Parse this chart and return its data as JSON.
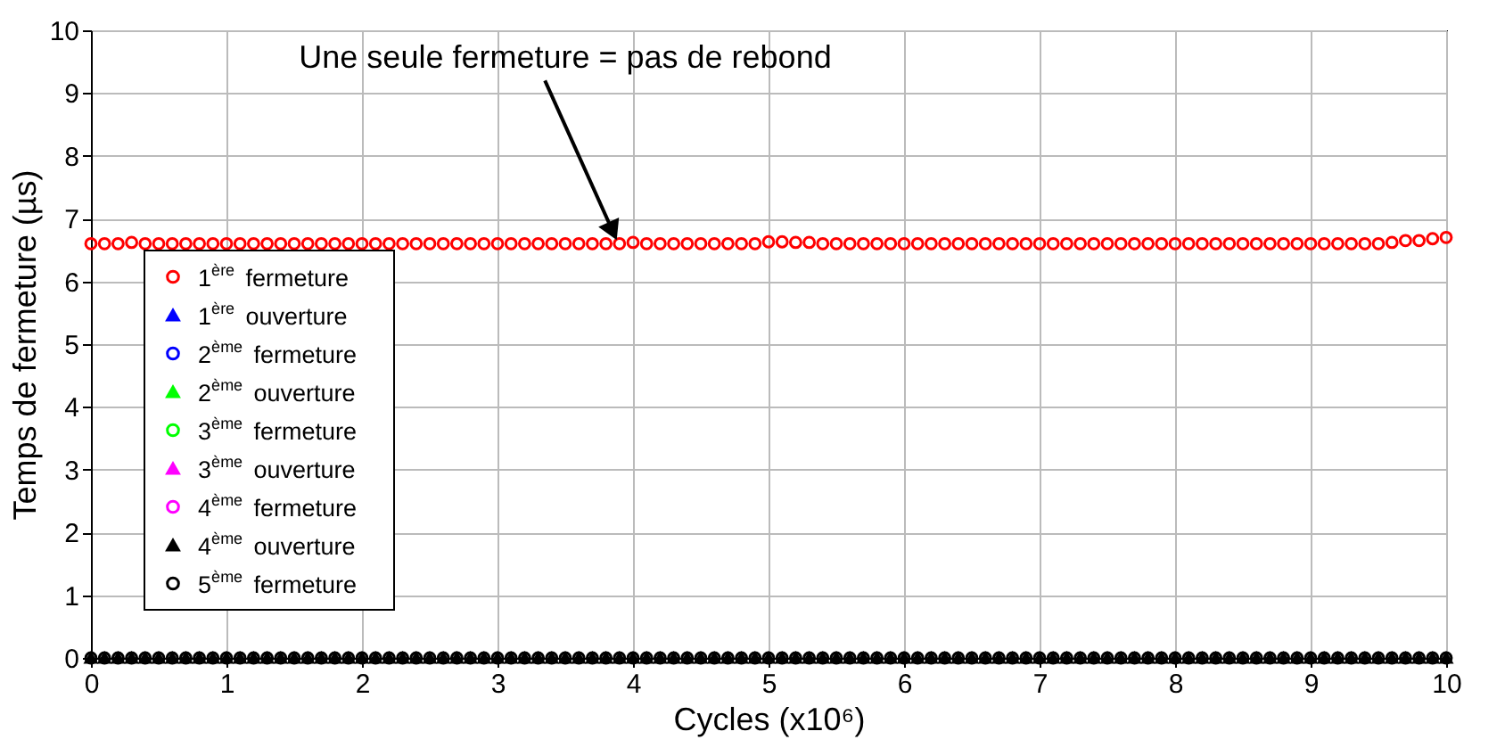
{
  "chart_data": {
    "type": "scatter",
    "xlabel": "Cycles (x10⁶)",
    "ylabel": "Temps de fermeture (µs)",
    "x": [
      0,
      0.1,
      0.2,
      0.3,
      0.4,
      0.5,
      0.6,
      0.7,
      0.8,
      0.9,
      1,
      1.1,
      1.2,
      1.3,
      1.4,
      1.5,
      1.6,
      1.7,
      1.8,
      1.9,
      2,
      2.1,
      2.2,
      2.3,
      2.4,
      2.5,
      2.6,
      2.7,
      2.8,
      2.9,
      3,
      3.1,
      3.2,
      3.3,
      3.4,
      3.5,
      3.6,
      3.7,
      3.8,
      3.9,
      4,
      4.1,
      4.2,
      4.3,
      4.4,
      4.5,
      4.6,
      4.7,
      4.8,
      4.9,
      5,
      5.1,
      5.2,
      5.3,
      5.4,
      5.5,
      5.6,
      5.7,
      5.8,
      5.9,
      6,
      6.1,
      6.2,
      6.3,
      6.4,
      6.5,
      6.6,
      6.7,
      6.8,
      6.9,
      7,
      7.1,
      7.2,
      7.3,
      7.4,
      7.5,
      7.6,
      7.7,
      7.8,
      7.9,
      8,
      8.1,
      8.2,
      8.3,
      8.4,
      8.5,
      8.6,
      8.7,
      8.8,
      8.9,
      9,
      9.1,
      9.2,
      9.3,
      9.4,
      9.5,
      9.6,
      9.7,
      9.8,
      9.9,
      10
    ],
    "series": [
      {
        "name": "1$^{ère}$ fermeture",
        "color": "#ff0000",
        "marker": "circle",
        "values": [
          6.6,
          6.6,
          6.6,
          6.62,
          6.6,
          6.6,
          6.6,
          6.6,
          6.6,
          6.6,
          6.6,
          6.6,
          6.6,
          6.6,
          6.6,
          6.6,
          6.6,
          6.6,
          6.6,
          6.6,
          6.6,
          6.6,
          6.6,
          6.6,
          6.6,
          6.6,
          6.6,
          6.6,
          6.6,
          6.6,
          6.6,
          6.6,
          6.6,
          6.6,
          6.6,
          6.6,
          6.6,
          6.6,
          6.6,
          6.6,
          6.62,
          6.6,
          6.6,
          6.6,
          6.6,
          6.6,
          6.6,
          6.6,
          6.6,
          6.6,
          6.63,
          6.63,
          6.62,
          6.62,
          6.6,
          6.6,
          6.6,
          6.6,
          6.6,
          6.6,
          6.6,
          6.6,
          6.6,
          6.6,
          6.6,
          6.6,
          6.6,
          6.6,
          6.6,
          6.6,
          6.6,
          6.6,
          6.6,
          6.6,
          6.6,
          6.6,
          6.6,
          6.6,
          6.6,
          6.6,
          6.6,
          6.6,
          6.6,
          6.6,
          6.6,
          6.6,
          6.6,
          6.6,
          6.6,
          6.6,
          6.6,
          6.6,
          6.6,
          6.6,
          6.6,
          6.6,
          6.62,
          6.65,
          6.65,
          6.68,
          6.7
        ]
      },
      {
        "name": "1$^{ère}$ ouverture",
        "color": "#0000ff",
        "marker": "triangle",
        "values": [
          null,
          null,
          null,
          null,
          null,
          null,
          null,
          null,
          null,
          null,
          null,
          null,
          null,
          null,
          null,
          null,
          null,
          null,
          null,
          null,
          null,
          null,
          null,
          null,
          null,
          null,
          null,
          null,
          null,
          null,
          null,
          null,
          null,
          null,
          null,
          null,
          null,
          null,
          null,
          null,
          null,
          null,
          null,
          null,
          null,
          null,
          null,
          null,
          null,
          null,
          null,
          null,
          null,
          null,
          null,
          null,
          null,
          null,
          null,
          null,
          null,
          null,
          null,
          null,
          null,
          null,
          null,
          null,
          null,
          null,
          null,
          null,
          null,
          null,
          null,
          null,
          null,
          null,
          null,
          null,
          null,
          null,
          null,
          null,
          null,
          null,
          null,
          null,
          null,
          null,
          null,
          null,
          null,
          null,
          null,
          null,
          null,
          null,
          null,
          null,
          null
        ]
      },
      {
        "name": "2$^{ème}$ fermeture",
        "color": "#0000ff",
        "marker": "circle",
        "values": [
          null,
          null,
          null,
          null,
          null,
          null,
          null,
          null,
          null,
          null,
          null,
          null,
          null,
          null,
          null,
          null,
          null,
          null,
          null,
          null,
          null,
          null,
          null,
          null,
          null,
          null,
          null,
          null,
          null,
          null,
          null,
          null,
          null,
          null,
          null,
          null,
          null,
          null,
          null,
          null,
          null,
          null,
          null,
          null,
          null,
          null,
          null,
          null,
          null,
          null,
          null,
          null,
          null,
          null,
          null,
          null,
          null,
          null,
          null,
          null,
          null,
          null,
          null,
          null,
          null,
          null,
          null,
          null,
          null,
          null,
          null,
          null,
          null,
          null,
          null,
          null,
          null,
          null,
          null,
          null,
          null,
          null,
          null,
          null,
          null,
          null,
          null,
          null,
          null,
          null,
          null,
          null,
          null,
          null,
          null,
          null,
          null,
          null,
          null,
          null,
          null
        ]
      },
      {
        "name": "2$^{ème}$ ouverture",
        "color": "#00ff00",
        "marker": "triangle",
        "values": [
          null,
          null,
          null,
          null,
          null,
          null,
          null,
          null,
          null,
          null,
          null,
          null,
          null,
          null,
          null,
          null,
          null,
          null,
          null,
          null,
          null,
          null,
          null,
          null,
          null,
          null,
          null,
          null,
          null,
          null,
          null,
          null,
          null,
          null,
          null,
          null,
          null,
          null,
          null,
          null,
          null,
          null,
          null,
          null,
          null,
          null,
          null,
          null,
          null,
          null,
          null,
          null,
          null,
          null,
          null,
          null,
          null,
          null,
          null,
          null,
          null,
          null,
          null,
          null,
          null,
          null,
          null,
          null,
          null,
          null,
          null,
          null,
          null,
          null,
          null,
          null,
          null,
          null,
          null,
          null,
          null,
          null,
          null,
          null,
          null,
          null,
          null,
          null,
          null,
          null,
          null,
          null,
          null,
          null,
          null,
          null,
          null,
          null,
          null,
          null,
          null
        ]
      },
      {
        "name": "3$^{ème}$ fermeture",
        "color": "#00ff00",
        "marker": "circle",
        "values": [
          null,
          null,
          null,
          null,
          null,
          null,
          null,
          null,
          null,
          null,
          null,
          null,
          null,
          null,
          null,
          null,
          null,
          null,
          null,
          null,
          null,
          null,
          null,
          null,
          null,
          null,
          null,
          null,
          null,
          null,
          null,
          null,
          null,
          null,
          null,
          null,
          null,
          null,
          null,
          null,
          null,
          null,
          null,
          null,
          null,
          null,
          null,
          null,
          null,
          null,
          null,
          null,
          null,
          null,
          null,
          null,
          null,
          null,
          null,
          null,
          null,
          null,
          null,
          null,
          null,
          null,
          null,
          null,
          null,
          null,
          null,
          null,
          null,
          null,
          null,
          null,
          null,
          null,
          null,
          null,
          null,
          null,
          null,
          null,
          null,
          null,
          null,
          null,
          null,
          null,
          null,
          null,
          null,
          null,
          null,
          null,
          null,
          null,
          null,
          null,
          null
        ]
      },
      {
        "name": "3$^{ème}$ ouverture",
        "color": "#ff00ff",
        "marker": "triangle",
        "values": [
          null,
          null,
          null,
          null,
          null,
          null,
          null,
          null,
          null,
          null,
          null,
          null,
          null,
          null,
          null,
          null,
          null,
          null,
          null,
          null,
          null,
          null,
          null,
          null,
          null,
          null,
          null,
          null,
          null,
          null,
          null,
          null,
          null,
          null,
          null,
          null,
          null,
          null,
          null,
          null,
          null,
          null,
          null,
          null,
          null,
          null,
          null,
          null,
          null,
          null,
          null,
          null,
          null,
          null,
          null,
          null,
          null,
          null,
          null,
          null,
          null,
          null,
          null,
          null,
          null,
          null,
          null,
          null,
          null,
          null,
          null,
          null,
          null,
          null,
          null,
          null,
          null,
          null,
          null,
          null,
          null,
          null,
          null,
          null,
          null,
          null,
          null,
          null,
          null,
          null,
          null,
          null,
          null,
          null,
          null,
          null,
          null,
          null,
          null,
          null,
          null
        ]
      },
      {
        "name": "4$^{ème}$ fermeture",
        "color": "#ff00ff",
        "marker": "circle",
        "values": [
          null,
          null,
          null,
          null,
          null,
          null,
          null,
          null,
          null,
          null,
          null,
          null,
          null,
          null,
          null,
          null,
          null,
          null,
          null,
          null,
          null,
          null,
          null,
          null,
          null,
          null,
          null,
          null,
          null,
          null,
          null,
          null,
          null,
          null,
          null,
          null,
          null,
          null,
          null,
          null,
          null,
          null,
          null,
          null,
          null,
          null,
          null,
          null,
          null,
          null,
          null,
          null,
          null,
          null,
          null,
          null,
          null,
          null,
          null,
          null,
          null,
          null,
          null,
          null,
          null,
          null,
          null,
          null,
          null,
          null,
          null,
          null,
          null,
          null,
          null,
          null,
          null,
          null,
          null,
          null,
          null,
          null,
          null,
          null,
          null,
          null,
          null,
          null,
          null,
          null,
          null,
          null,
          null,
          null,
          null,
          null,
          null,
          null,
          null,
          null,
          null
        ]
      },
      {
        "name": "4$^{ème}$ ouverture",
        "color": "#000000",
        "marker": "triangle",
        "values": [
          0,
          0,
          0,
          0,
          0,
          0,
          0,
          0,
          0,
          0,
          0,
          0,
          0,
          0,
          0,
          0,
          0,
          0,
          0,
          0,
          0,
          0,
          0,
          0,
          0,
          0,
          0,
          0,
          0,
          0,
          0,
          0,
          0,
          0,
          0,
          0,
          0,
          0,
          0,
          0,
          0,
          0,
          0,
          0,
          0,
          0,
          0,
          0,
          0,
          0,
          0,
          0,
          0,
          0,
          0,
          0,
          0,
          0,
          0,
          0,
          0,
          0,
          0,
          0,
          0,
          0,
          0,
          0,
          0,
          0,
          0,
          0,
          0,
          0,
          0,
          0,
          0,
          0,
          0,
          0,
          0,
          0,
          0,
          0,
          0,
          0,
          0,
          0,
          0,
          0,
          0,
          0,
          0,
          0,
          0,
          0,
          0,
          0,
          0,
          0,
          0
        ]
      },
      {
        "name": "5$^{ème}$ fermeture",
        "color": "#000000",
        "marker": "circle",
        "values": [
          0,
          0,
          0,
          0,
          0,
          0,
          0,
          0,
          0,
          0,
          0,
          0,
          0,
          0,
          0,
          0,
          0,
          0,
          0,
          0,
          0,
          0,
          0,
          0,
          0,
          0,
          0,
          0,
          0,
          0,
          0,
          0,
          0,
          0,
          0,
          0,
          0,
          0,
          0,
          0,
          0,
          0,
          0,
          0,
          0,
          0,
          0,
          0,
          0,
          0,
          0,
          0,
          0,
          0,
          0,
          0,
          0,
          0,
          0,
          0,
          0,
          0,
          0,
          0,
          0,
          0,
          0,
          0,
          0,
          0,
          0,
          0,
          0,
          0,
          0,
          0,
          0,
          0,
          0,
          0,
          0,
          0,
          0,
          0,
          0,
          0,
          0,
          0,
          0,
          0,
          0,
          0,
          0,
          0,
          0,
          0,
          0,
          0,
          0,
          0,
          0
        ]
      }
    ],
    "annotations": [
      {
        "text": "Une seule fermeture = pas de rebond",
        "x": 3.85,
        "y": 6.6
      }
    ],
    "xlim": [
      0,
      10
    ],
    "ylim": [
      0,
      10
    ],
    "xticks": [
      0,
      1,
      2,
      3,
      4,
      5,
      6,
      7,
      8,
      9,
      10
    ],
    "yticks": [
      0,
      1,
      2,
      3,
      4,
      5,
      6,
      7,
      8,
      9,
      10
    ],
    "grid": true,
    "legend": "bottom left"
  }
}
